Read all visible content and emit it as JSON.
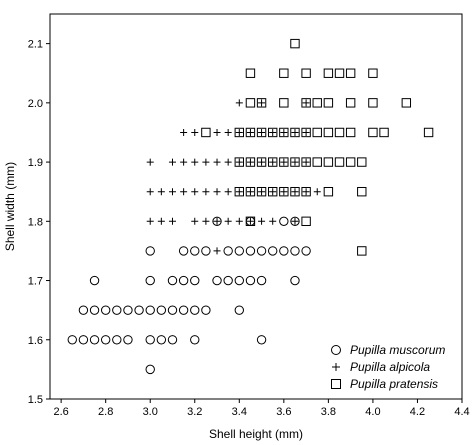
{
  "chart_data": {
    "type": "scatter",
    "xlabel": "Shell height (mm)",
    "ylabel": "Shell width (mm)",
    "xlim": [
      2.55,
      4.4
    ],
    "ylim": [
      1.5,
      2.15
    ],
    "x_ticks": [
      "2.6",
      "2.8",
      "3.0",
      "3.2",
      "3.4",
      "3.6",
      "3.8",
      "4.0",
      "4.2",
      "4.4"
    ],
    "y_ticks": [
      "1.5",
      "1.6",
      "1.7",
      "1.8",
      "1.9",
      "2.0",
      "2.1"
    ],
    "grid": false,
    "legend_position": "bottom-right",
    "series": [
      {
        "name": "Pupilla muscorum",
        "marker": "circle",
        "points": [
          [
            3.0,
            1.55
          ],
          [
            2.65,
            1.6
          ],
          [
            2.7,
            1.6
          ],
          [
            2.75,
            1.6
          ],
          [
            2.8,
            1.6
          ],
          [
            2.85,
            1.6
          ],
          [
            2.9,
            1.6
          ],
          [
            3.0,
            1.6
          ],
          [
            3.05,
            1.6
          ],
          [
            3.1,
            1.6
          ],
          [
            3.2,
            1.6
          ],
          [
            3.5,
            1.6
          ],
          [
            2.7,
            1.65
          ],
          [
            2.75,
            1.65
          ],
          [
            2.8,
            1.65
          ],
          [
            2.85,
            1.65
          ],
          [
            2.9,
            1.65
          ],
          [
            2.95,
            1.65
          ],
          [
            3.0,
            1.65
          ],
          [
            3.05,
            1.65
          ],
          [
            3.1,
            1.65
          ],
          [
            3.15,
            1.65
          ],
          [
            3.2,
            1.65
          ],
          [
            3.25,
            1.65
          ],
          [
            3.4,
            1.65
          ],
          [
            2.75,
            1.7
          ],
          [
            3.0,
            1.7
          ],
          [
            3.1,
            1.7
          ],
          [
            3.15,
            1.7
          ],
          [
            3.2,
            1.7
          ],
          [
            3.3,
            1.7
          ],
          [
            3.35,
            1.7
          ],
          [
            3.4,
            1.7
          ],
          [
            3.45,
            1.7
          ],
          [
            3.5,
            1.7
          ],
          [
            3.65,
            1.7
          ],
          [
            3.0,
            1.75
          ],
          [
            3.15,
            1.75
          ],
          [
            3.2,
            1.75
          ],
          [
            3.25,
            1.75
          ],
          [
            3.35,
            1.75
          ],
          [
            3.4,
            1.75
          ],
          [
            3.45,
            1.75
          ],
          [
            3.5,
            1.75
          ],
          [
            3.55,
            1.75
          ],
          [
            3.6,
            1.75
          ],
          [
            3.65,
            1.75
          ],
          [
            3.7,
            1.75
          ],
          [
            3.6,
            1.8
          ],
          [
            3.3,
            1.8
          ],
          [
            3.45,
            1.8
          ],
          [
            3.65,
            1.8
          ]
        ]
      },
      {
        "name": "Pupilla alpicola",
        "marker": "plus",
        "points": [
          [
            3.3,
            1.75
          ],
          [
            3.0,
            1.8
          ],
          [
            3.05,
            1.8
          ],
          [
            3.1,
            1.8
          ],
          [
            3.2,
            1.8
          ],
          [
            3.25,
            1.8
          ],
          [
            3.3,
            1.8
          ],
          [
            3.35,
            1.8
          ],
          [
            3.4,
            1.8
          ],
          [
            3.45,
            1.8
          ],
          [
            3.5,
            1.8
          ],
          [
            3.55,
            1.8
          ],
          [
            3.65,
            1.8
          ],
          [
            3.0,
            1.85
          ],
          [
            3.05,
            1.85
          ],
          [
            3.1,
            1.85
          ],
          [
            3.15,
            1.85
          ],
          [
            3.2,
            1.85
          ],
          [
            3.25,
            1.85
          ],
          [
            3.3,
            1.85
          ],
          [
            3.35,
            1.85
          ],
          [
            3.4,
            1.85
          ],
          [
            3.45,
            1.85
          ],
          [
            3.5,
            1.85
          ],
          [
            3.55,
            1.85
          ],
          [
            3.6,
            1.85
          ],
          [
            3.65,
            1.85
          ],
          [
            3.7,
            1.85
          ],
          [
            3.75,
            1.85
          ],
          [
            3.0,
            1.9
          ],
          [
            3.1,
            1.9
          ],
          [
            3.15,
            1.9
          ],
          [
            3.2,
            1.9
          ],
          [
            3.25,
            1.9
          ],
          [
            3.3,
            1.9
          ],
          [
            3.35,
            1.9
          ],
          [
            3.4,
            1.9
          ],
          [
            3.45,
            1.9
          ],
          [
            3.5,
            1.9
          ],
          [
            3.55,
            1.9
          ],
          [
            3.6,
            1.9
          ],
          [
            3.65,
            1.9
          ],
          [
            3.7,
            1.9
          ],
          [
            3.15,
            1.95
          ],
          [
            3.2,
            1.95
          ],
          [
            3.3,
            1.95
          ],
          [
            3.35,
            1.95
          ],
          [
            3.4,
            1.95
          ],
          [
            3.45,
            1.95
          ],
          [
            3.5,
            1.95
          ],
          [
            3.55,
            1.95
          ],
          [
            3.6,
            1.95
          ],
          [
            3.65,
            1.95
          ],
          [
            3.7,
            1.95
          ],
          [
            3.4,
            2.0
          ],
          [
            3.5,
            2.0
          ],
          [
            3.7,
            2.0
          ]
        ]
      },
      {
        "name": "Pupilla pratensis",
        "marker": "square",
        "points": [
          [
            3.95,
            1.75
          ],
          [
            3.45,
            1.8
          ],
          [
            3.7,
            1.8
          ],
          [
            3.4,
            1.85
          ],
          [
            3.45,
            1.85
          ],
          [
            3.5,
            1.85
          ],
          [
            3.55,
            1.85
          ],
          [
            3.6,
            1.85
          ],
          [
            3.65,
            1.85
          ],
          [
            3.7,
            1.85
          ],
          [
            3.8,
            1.85
          ],
          [
            3.95,
            1.85
          ],
          [
            3.4,
            1.9
          ],
          [
            3.45,
            1.9
          ],
          [
            3.5,
            1.9
          ],
          [
            3.55,
            1.9
          ],
          [
            3.6,
            1.9
          ],
          [
            3.65,
            1.9
          ],
          [
            3.7,
            1.9
          ],
          [
            3.75,
            1.9
          ],
          [
            3.8,
            1.9
          ],
          [
            3.85,
            1.9
          ],
          [
            3.9,
            1.9
          ],
          [
            3.95,
            1.9
          ],
          [
            3.25,
            1.95
          ],
          [
            3.4,
            1.95
          ],
          [
            3.45,
            1.95
          ],
          [
            3.5,
            1.95
          ],
          [
            3.55,
            1.95
          ],
          [
            3.6,
            1.95
          ],
          [
            3.65,
            1.95
          ],
          [
            3.7,
            1.95
          ],
          [
            3.75,
            1.95
          ],
          [
            3.8,
            1.95
          ],
          [
            3.85,
            1.95
          ],
          [
            3.9,
            1.95
          ],
          [
            4.0,
            1.95
          ],
          [
            4.05,
            1.95
          ],
          [
            4.25,
            1.95
          ],
          [
            3.45,
            2.0
          ],
          [
            3.5,
            2.0
          ],
          [
            3.6,
            2.0
          ],
          [
            3.7,
            2.0
          ],
          [
            3.75,
            2.0
          ],
          [
            3.8,
            2.0
          ],
          [
            3.9,
            2.0
          ],
          [
            4.0,
            2.0
          ],
          [
            4.15,
            2.0
          ],
          [
            3.45,
            2.05
          ],
          [
            3.6,
            2.05
          ],
          [
            3.7,
            2.05
          ],
          [
            3.8,
            2.05
          ],
          [
            3.85,
            2.05
          ],
          [
            3.9,
            2.05
          ],
          [
            4.0,
            2.05
          ],
          [
            3.65,
            2.1
          ]
        ]
      }
    ]
  }
}
